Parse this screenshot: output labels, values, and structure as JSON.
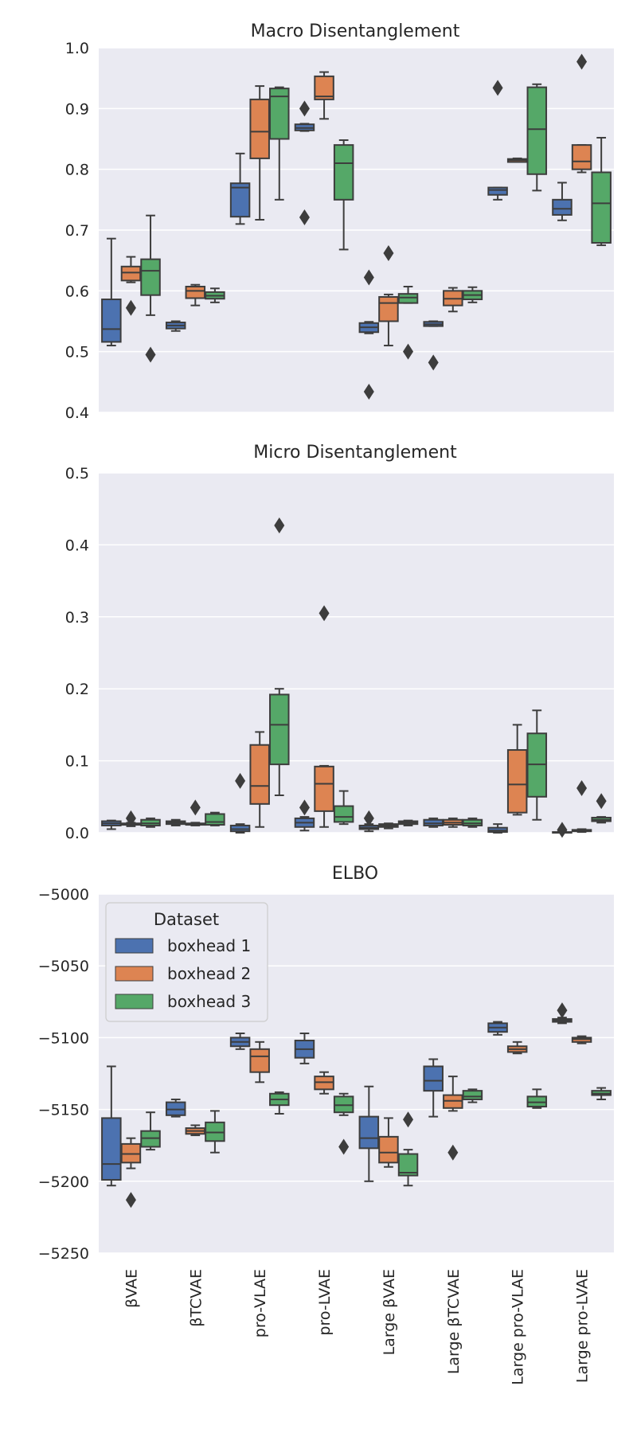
{
  "colors": {
    "boxhead 1": "#4c72b0",
    "boxhead 2": "#dd8452",
    "boxhead 3": "#55a868",
    "line": "#3d3d3d",
    "panel": "#eaeaf2"
  },
  "legend": {
    "title": "Dataset",
    "entries": [
      "boxhead 1",
      "boxhead 2",
      "boxhead 3"
    ],
    "placement": "top-left of ELBO panel"
  },
  "chart_data": [
    {
      "type": "boxplot",
      "title": "Macro Disentanglement",
      "ylim": [
        0.4,
        1.0
      ],
      "yticks": [
        0.4,
        0.5,
        0.6,
        0.7,
        0.8,
        0.9,
        1.0
      ],
      "ytick_labels": [
        "0.4",
        "0.5",
        "0.6",
        "0.7",
        "0.8",
        "0.9",
        "1.0"
      ],
      "categories": [
        "βVAE",
        "βTCVAE",
        "pro-VLAE",
        "pro-LVAE",
        "Large βVAE",
        "Large βTCVAE",
        "Large pro-VLAE",
        "Large pro-LVAE"
      ],
      "series": [
        {
          "name": "boxhead 1",
          "boxes": [
            {
              "wlo": 0.51,
              "q1": 0.516,
              "med": 0.537,
              "q3": 0.586,
              "whi": 0.686,
              "fliers": []
            },
            {
              "wlo": 0.534,
              "q1": 0.538,
              "med": 0.543,
              "q3": 0.548,
              "whi": 0.55,
              "fliers": []
            },
            {
              "wlo": 0.71,
              "q1": 0.722,
              "med": 0.77,
              "q3": 0.777,
              "whi": 0.826,
              "fliers": []
            },
            {
              "wlo": 0.863,
              "q1": 0.864,
              "med": 0.868,
              "q3": 0.874,
              "whi": 0.875,
              "fliers": [
                0.9,
                0.721
              ]
            },
            {
              "wlo": 0.53,
              "q1": 0.532,
              "med": 0.54,
              "q3": 0.547,
              "whi": 0.549,
              "fliers": [
                0.622,
                0.434
              ]
            },
            {
              "wlo": 0.542,
              "q1": 0.542,
              "med": 0.545,
              "q3": 0.549,
              "whi": 0.55,
              "fliers": [
                0.482
              ]
            },
            {
              "wlo": 0.75,
              "q1": 0.758,
              "med": 0.766,
              "q3": 0.77,
              "whi": 0.77,
              "fliers": [
                0.934
              ]
            },
            {
              "wlo": 0.716,
              "q1": 0.725,
              "med": 0.735,
              "q3": 0.75,
              "whi": 0.778,
              "fliers": []
            }
          ]
        },
        {
          "name": "boxhead 2",
          "boxes": [
            {
              "wlo": 0.614,
              "q1": 0.617,
              "med": 0.63,
              "q3": 0.64,
              "whi": 0.656,
              "fliers": [
                0.572
              ]
            },
            {
              "wlo": 0.576,
              "q1": 0.588,
              "med": 0.6,
              "q3": 0.607,
              "whi": 0.61,
              "fliers": []
            },
            {
              "wlo": 0.717,
              "q1": 0.818,
              "med": 0.862,
              "q3": 0.915,
              "whi": 0.937,
              "fliers": []
            },
            {
              "wlo": 0.883,
              "q1": 0.915,
              "med": 0.92,
              "q3": 0.953,
              "whi": 0.96,
              "fliers": []
            },
            {
              "wlo": 0.51,
              "q1": 0.55,
              "med": 0.58,
              "q3": 0.59,
              "whi": 0.594,
              "fliers": [
                0.662
              ]
            },
            {
              "wlo": 0.566,
              "q1": 0.576,
              "med": 0.587,
              "q3": 0.6,
              "whi": 0.605,
              "fliers": []
            },
            {
              "wlo": 0.812,
              "q1": 0.812,
              "med": 0.815,
              "q3": 0.817,
              "whi": 0.818,
              "fliers": []
            },
            {
              "wlo": 0.795,
              "q1": 0.8,
              "med": 0.813,
              "q3": 0.84,
              "whi": 0.84,
              "fliers": [
                0.977
              ]
            }
          ]
        },
        {
          "name": "boxhead 3",
          "boxes": [
            {
              "wlo": 0.56,
              "q1": 0.593,
              "med": 0.633,
              "q3": 0.652,
              "whi": 0.724,
              "fliers": [
                0.495
              ]
            },
            {
              "wlo": 0.581,
              "q1": 0.587,
              "med": 0.592,
              "q3": 0.598,
              "whi": 0.604,
              "fliers": []
            },
            {
              "wlo": 0.75,
              "q1": 0.85,
              "med": 0.92,
              "q3": 0.933,
              "whi": 0.935,
              "fliers": []
            },
            {
              "wlo": 0.668,
              "q1": 0.75,
              "med": 0.81,
              "q3": 0.84,
              "whi": 0.848,
              "fliers": []
            },
            {
              "wlo": 0.58,
              "q1": 0.58,
              "med": 0.589,
              "q3": 0.595,
              "whi": 0.607,
              "fliers": [
                0.5
              ]
            },
            {
              "wlo": 0.581,
              "q1": 0.586,
              "med": 0.593,
              "q3": 0.6,
              "whi": 0.606,
              "fliers": []
            },
            {
              "wlo": 0.765,
              "q1": 0.792,
              "med": 0.866,
              "q3": 0.935,
              "whi": 0.94,
              "fliers": []
            },
            {
              "wlo": 0.675,
              "q1": 0.679,
              "med": 0.744,
              "q3": 0.795,
              "whi": 0.852,
              "fliers": []
            }
          ]
        }
      ]
    },
    {
      "type": "boxplot",
      "title": "Micro Disentanglement",
      "ylim": [
        0.0,
        0.5
      ],
      "yticks": [
        0.0,
        0.1,
        0.2,
        0.3,
        0.4,
        0.5
      ],
      "ytick_labels": [
        "0.0",
        "0.1",
        "0.2",
        "0.3",
        "0.4",
        "0.5"
      ],
      "categories": [
        "βVAE",
        "βTCVAE",
        "pro-VLAE",
        "pro-LVAE",
        "Large βVAE",
        "Large βTCVAE",
        "Large pro-VLAE",
        "Large pro-LVAE"
      ],
      "series": [
        {
          "name": "boxhead 1",
          "boxes": [
            {
              "wlo": 0.005,
              "q1": 0.01,
              "med": 0.013,
              "q3": 0.016,
              "whi": 0.017,
              "fliers": []
            },
            {
              "wlo": 0.01,
              "q1": 0.012,
              "med": 0.014,
              "q3": 0.016,
              "whi": 0.018,
              "fliers": []
            },
            {
              "wlo": 0.0,
              "q1": 0.002,
              "med": 0.005,
              "q3": 0.01,
              "whi": 0.012,
              "fliers": [
                0.072
              ]
            },
            {
              "wlo": 0.003,
              "q1": 0.008,
              "med": 0.014,
              "q3": 0.02,
              "whi": 0.022,
              "fliers": [
                0.035
              ]
            },
            {
              "wlo": 0.002,
              "q1": 0.005,
              "med": 0.007,
              "q3": 0.01,
              "whi": 0.012,
              "fliers": [
                0.02
              ]
            },
            {
              "wlo": 0.008,
              "q1": 0.01,
              "med": 0.013,
              "q3": 0.018,
              "whi": 0.02,
              "fliers": []
            },
            {
              "wlo": 0.0,
              "q1": 0.001,
              "med": 0.003,
              "q3": 0.007,
              "whi": 0.012,
              "fliers": []
            },
            {
              "wlo": 0.0,
              "q1": 0.0,
              "med": 0.0,
              "q3": 0.001,
              "whi": 0.002,
              "fliers": [
                0.004
              ]
            }
          ]
        },
        {
          "name": "boxhead 2",
          "boxes": [
            {
              "wlo": 0.009,
              "q1": 0.011,
              "med": 0.012,
              "q3": 0.013,
              "whi": 0.014,
              "fliers": [
                0.02
              ]
            },
            {
              "wlo": 0.01,
              "q1": 0.011,
              "med": 0.012,
              "q3": 0.013,
              "whi": 0.014,
              "fliers": [
                0.035
              ]
            },
            {
              "wlo": 0.008,
              "q1": 0.04,
              "med": 0.065,
              "q3": 0.122,
              "whi": 0.14,
              "fliers": []
            },
            {
              "wlo": 0.008,
              "q1": 0.03,
              "med": 0.068,
              "q3": 0.092,
              "whi": 0.093,
              "fliers": [
                0.305
              ]
            },
            {
              "wlo": 0.006,
              "q1": 0.008,
              "med": 0.01,
              "q3": 0.012,
              "whi": 0.013,
              "fliers": []
            },
            {
              "wlo": 0.008,
              "q1": 0.011,
              "med": 0.014,
              "q3": 0.018,
              "whi": 0.02,
              "fliers": []
            },
            {
              "wlo": 0.025,
              "q1": 0.028,
              "med": 0.067,
              "q3": 0.115,
              "whi": 0.15,
              "fliers": []
            },
            {
              "wlo": 0.001,
              "q1": 0.002,
              "med": 0.003,
              "q3": 0.004,
              "whi": 0.005,
              "fliers": [
                0.062
              ]
            }
          ]
        },
        {
          "name": "boxhead 3",
          "boxes": [
            {
              "wlo": 0.008,
              "q1": 0.01,
              "med": 0.013,
              "q3": 0.018,
              "whi": 0.02,
              "fliers": []
            },
            {
              "wlo": 0.01,
              "q1": 0.011,
              "med": 0.015,
              "q3": 0.026,
              "whi": 0.028,
              "fliers": []
            },
            {
              "wlo": 0.052,
              "q1": 0.095,
              "med": 0.15,
              "q3": 0.192,
              "whi": 0.2,
              "fliers": [
                0.427
              ]
            },
            {
              "wlo": 0.012,
              "q1": 0.015,
              "med": 0.022,
              "q3": 0.037,
              "whi": 0.058,
              "fliers": []
            },
            {
              "wlo": 0.01,
              "q1": 0.012,
              "med": 0.014,
              "q3": 0.016,
              "whi": 0.017,
              "fliers": []
            },
            {
              "wlo": 0.008,
              "q1": 0.01,
              "med": 0.013,
              "q3": 0.018,
              "whi": 0.02,
              "fliers": []
            },
            {
              "wlo": 0.018,
              "q1": 0.05,
              "med": 0.095,
              "q3": 0.138,
              "whi": 0.17,
              "fliers": []
            },
            {
              "wlo": 0.014,
              "q1": 0.016,
              "med": 0.018,
              "q3": 0.021,
              "whi": 0.022,
              "fliers": [
                0.044
              ]
            }
          ]
        }
      ]
    },
    {
      "type": "boxplot",
      "title": "ELBO",
      "ylim": [
        -5250,
        -5000
      ],
      "yticks": [
        -5250,
        -5200,
        -5150,
        -5100,
        -5050,
        -5000
      ],
      "ytick_labels": [
        "−5250",
        "−5200",
        "−5150",
        "−5100",
        "−5050",
        "−5000"
      ],
      "categories": [
        "βVAE",
        "βTCVAE",
        "pro-VLAE",
        "pro-LVAE",
        "Large βVAE",
        "Large βTCVAE",
        "Large pro-VLAE",
        "Large pro-LVAE"
      ],
      "series": [
        {
          "name": "boxhead 1",
          "boxes": [
            {
              "wlo": -5203,
              "q1": -5199,
              "med": -5188,
              "q3": -5156,
              "whi": -5120,
              "fliers": []
            },
            {
              "wlo": -5155,
              "q1": -5154,
              "med": -5150,
              "q3": -5145,
              "whi": -5143,
              "fliers": []
            },
            {
              "wlo": -5108,
              "q1": -5106,
              "med": -5103,
              "q3": -5100,
              "whi": -5097,
              "fliers": []
            },
            {
              "wlo": -5118,
              "q1": -5114,
              "med": -5108,
              "q3": -5102,
              "whi": -5097,
              "fliers": []
            },
            {
              "wlo": -5200,
              "q1": -5177,
              "med": -5170,
              "q3": -5155,
              "whi": -5134,
              "fliers": []
            },
            {
              "wlo": -5155,
              "q1": -5137,
              "med": -5130,
              "q3": -5120,
              "whi": -5115,
              "fliers": []
            },
            {
              "wlo": -5098,
              "q1": -5096,
              "med": -5093,
              "q3": -5090,
              "whi": -5089,
              "fliers": []
            },
            {
              "wlo": -5090,
              "q1": -5089,
              "med": -5088,
              "q3": -5087,
              "whi": -5086,
              "fliers": [
                -5081
              ]
            }
          ]
        },
        {
          "name": "boxhead 2",
          "boxes": [
            {
              "wlo": -5191,
              "q1": -5187,
              "med": -5181,
              "q3": -5174,
              "whi": -5170,
              "fliers": [
                -5213
              ]
            },
            {
              "wlo": -5168,
              "q1": -5167,
              "med": -5165,
              "q3": -5163,
              "whi": -5161,
              "fliers": []
            },
            {
              "wlo": -5131,
              "q1": -5124,
              "med": -5113,
              "q3": -5108,
              "whi": -5103,
              "fliers": []
            },
            {
              "wlo": -5139,
              "q1": -5136,
              "med": -5131,
              "q3": -5127,
              "whi": -5124,
              "fliers": []
            },
            {
              "wlo": -5190,
              "q1": -5187,
              "med": -5180,
              "q3": -5169,
              "whi": -5156,
              "fliers": []
            },
            {
              "wlo": -5151,
              "q1": -5149,
              "med": -5144,
              "q3": -5140,
              "whi": -5127,
              "fliers": [
                -5180
              ]
            },
            {
              "wlo": -5111,
              "q1": -5110,
              "med": -5108,
              "q3": -5106,
              "whi": -5103,
              "fliers": []
            },
            {
              "wlo": -5104,
              "q1": -5103,
              "med": -5101,
              "q3": -5100,
              "whi": -5099,
              "fliers": []
            }
          ]
        },
        {
          "name": "boxhead 3",
          "boxes": [
            {
              "wlo": -5178,
              "q1": -5176,
              "med": -5170,
              "q3": -5165,
              "whi": -5152,
              "fliers": []
            },
            {
              "wlo": -5180,
              "q1": -5172,
              "med": -5166,
              "q3": -5159,
              "whi": -5151,
              "fliers": []
            },
            {
              "wlo": -5153,
              "q1": -5147,
              "med": -5143,
              "q3": -5139,
              "whi": -5138,
              "fliers": []
            },
            {
              "wlo": -5154,
              "q1": -5152,
              "med": -5147,
              "q3": -5141,
              "whi": -5139,
              "fliers": [
                -5176
              ]
            },
            {
              "wlo": -5203,
              "q1": -5196,
              "med": -5194,
              "q3": -5181,
              "whi": -5178,
              "fliers": [
                -5157
              ]
            },
            {
              "wlo": -5145,
              "q1": -5143,
              "med": -5141,
              "q3": -5137,
              "whi": -5136,
              "fliers": []
            },
            {
              "wlo": -5149,
              "q1": -5148,
              "med": -5145,
              "q3": -5141,
              "whi": -5136,
              "fliers": []
            },
            {
              "wlo": -5143,
              "q1": -5140,
              "med": -5139,
              "q3": -5137,
              "whi": -5135,
              "fliers": []
            }
          ]
        }
      ]
    }
  ]
}
